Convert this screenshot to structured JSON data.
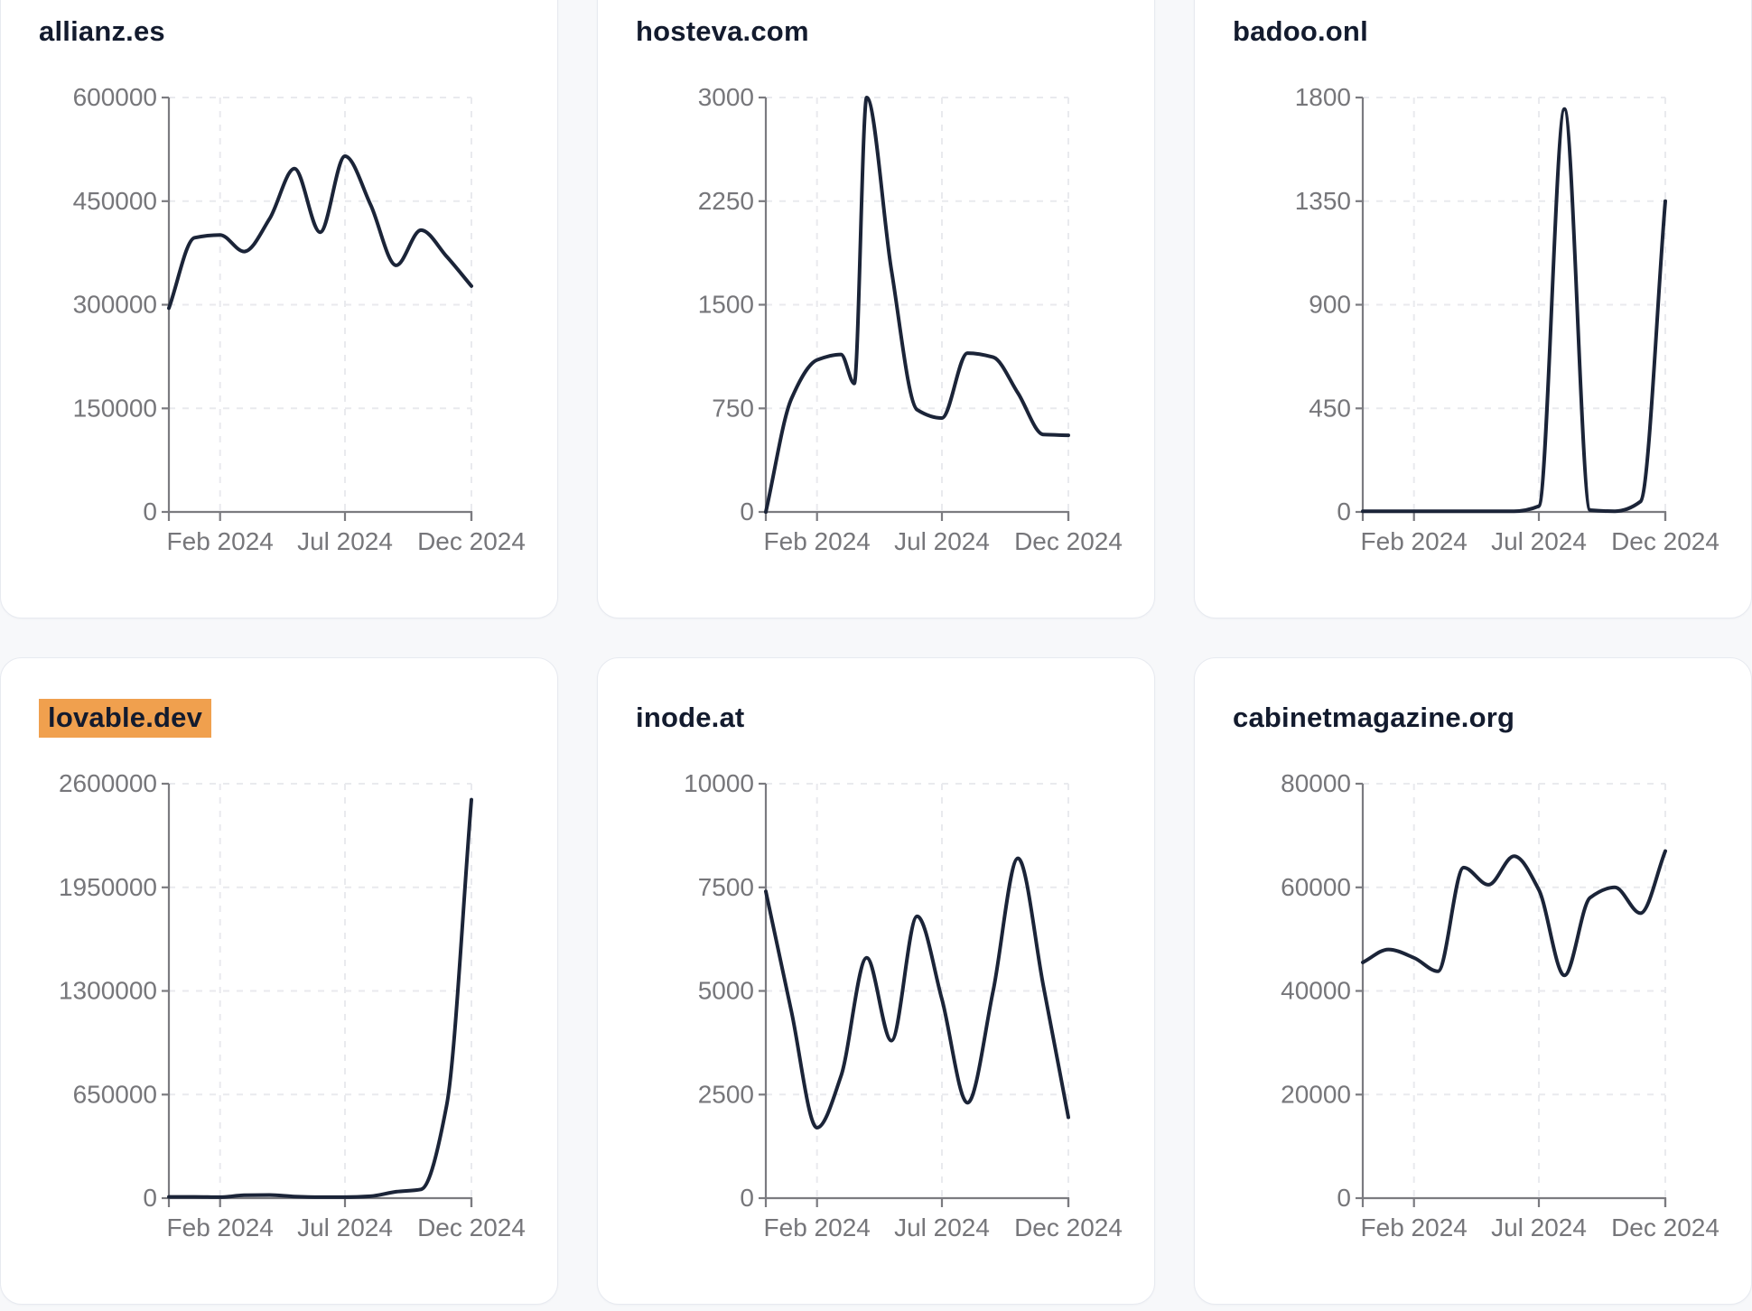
{
  "page": {
    "background": "#f7f8fa",
    "card_background": "#ffffff",
    "card_border_color": "#e7eaf0",
    "title_color": "#131b2e",
    "line_color": "#1b2438",
    "highlight_color": "#f0a04e",
    "tick_label_color": "#76767a",
    "axis_color": "#7b7b80",
    "grid_color": "#e9eaee"
  },
  "x_axis": {
    "domain_days": [
      0,
      366
    ],
    "tick_days": [
      62,
      213,
      366
    ],
    "tick_labels": [
      "Feb 2024",
      "Jul 2024",
      "Dec 2024"
    ],
    "point_months": [
      "2023-12",
      "2024-01",
      "2024-02",
      "2024-03",
      "2024-04",
      "2024-05",
      "2024-06",
      "2024-07",
      "2024-08",
      "2024-09",
      "2024-10",
      "2024-11",
      "2024-12"
    ]
  },
  "chart_data": [
    {
      "type": "line",
      "title": "allianz.es",
      "highlighted": false,
      "grid": "dashed",
      "ylim": [
        0,
        600000
      ],
      "y_ticks": [
        0,
        150000,
        300000,
        450000,
        600000
      ],
      "x_tick_labels": [
        "Feb 2024",
        "Jul 2024",
        "Dec 2024"
      ],
      "x_days": [
        0,
        31,
        62,
        91,
        122,
        152,
        183,
        213,
        244,
        275,
        305,
        336,
        366
      ],
      "values": [
        295000,
        397000,
        401000,
        377000,
        425000,
        497000,
        405000,
        515000,
        445000,
        357000,
        408000,
        370000,
        327000
      ]
    },
    {
      "type": "line",
      "title": "hosteva.com",
      "highlighted": false,
      "grid": "dashed",
      "ylim": [
        0,
        3000
      ],
      "y_ticks": [
        0,
        750,
        1500,
        2250,
        3000
      ],
      "x_tick_labels": [
        "Feb 2024",
        "Jul 2024",
        "Dec 2024"
      ],
      "x_days": [
        0,
        31,
        62,
        91,
        107,
        122,
        152,
        183,
        213,
        244,
        275,
        305,
        336,
        366
      ],
      "values": [
        0,
        820,
        1100,
        1140,
        930,
        3000,
        1750,
        740,
        680,
        1150,
        1120,
        860,
        560,
        555
      ]
    },
    {
      "type": "line",
      "title": "badoo.onl",
      "highlighted": false,
      "grid": "dashed",
      "ylim": [
        0,
        1800
      ],
      "y_ticks": [
        0,
        450,
        900,
        1350,
        1800
      ],
      "x_tick_labels": [
        "Feb 2024",
        "Jul 2024",
        "Dec 2024"
      ],
      "x_days": [
        0,
        31,
        62,
        91,
        122,
        152,
        183,
        213,
        244,
        275,
        305,
        336,
        366
      ],
      "values": [
        3,
        3,
        3,
        3,
        3,
        3,
        3,
        25,
        1750,
        8,
        3,
        45,
        1350
      ]
    },
    {
      "type": "line",
      "title": "lovable.dev",
      "highlighted": true,
      "grid": "dashed",
      "ylim": [
        0,
        2600000
      ],
      "y_ticks": [
        0,
        650000,
        1300000,
        1950000,
        2600000
      ],
      "x_tick_labels": [
        "Feb 2024",
        "Jul 2024",
        "Dec 2024"
      ],
      "x_days": [
        0,
        31,
        62,
        91,
        122,
        152,
        183,
        213,
        244,
        275,
        305,
        336,
        366
      ],
      "values": [
        8000,
        8000,
        6000,
        18000,
        20000,
        10000,
        6000,
        6000,
        12000,
        40000,
        55000,
        580000,
        2500000
      ]
    },
    {
      "type": "line",
      "title": "inode.at",
      "highlighted": false,
      "grid": "dashed",
      "ylim": [
        0,
        10000
      ],
      "y_ticks": [
        0,
        2500,
        5000,
        7500,
        10000
      ],
      "x_tick_labels": [
        "Feb 2024",
        "Jul 2024",
        "Dec 2024"
      ],
      "x_days": [
        0,
        31,
        62,
        91,
        122,
        152,
        183,
        213,
        244,
        275,
        305,
        336,
        366
      ],
      "values": [
        7400,
        4500,
        1700,
        2950,
        5800,
        3800,
        6800,
        4800,
        2300,
        5000,
        8200,
        5100,
        1950
      ]
    },
    {
      "type": "line",
      "title": "cabinetmagazine.org",
      "highlighted": false,
      "grid": "dashed",
      "ylim": [
        0,
        80000
      ],
      "y_ticks": [
        0,
        20000,
        40000,
        60000,
        80000
      ],
      "x_tick_labels": [
        "Feb 2024",
        "Jul 2024",
        "Dec 2024"
      ],
      "x_days": [
        0,
        31,
        62,
        91,
        122,
        152,
        183,
        213,
        244,
        275,
        305,
        336,
        366
      ],
      "values": [
        45500,
        48000,
        46400,
        43800,
        63800,
        60500,
        66000,
        59500,
        43000,
        58000,
        60000,
        55000,
        67000
      ]
    }
  ]
}
